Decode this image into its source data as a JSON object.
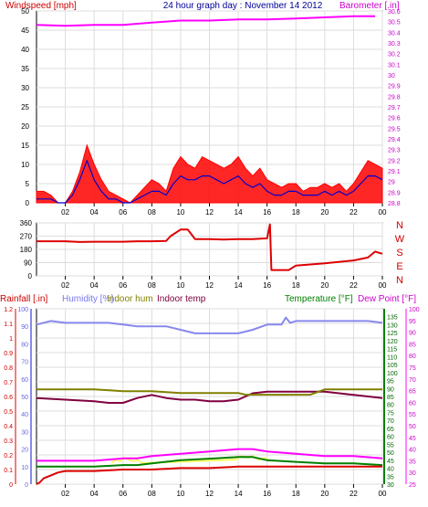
{
  "chart_data": [
    {
      "id": "wind_baro",
      "type": "line",
      "title": "24 hour graph day : November 14 2012",
      "left_axis_label": "Windspeed [mph]",
      "right_axis_label": "Barometer [.in]",
      "left_ylim": [
        0,
        50
      ],
      "left_ticks": [
        0,
        5,
        10,
        15,
        20,
        25,
        30,
        35,
        40,
        45,
        50
      ],
      "right_ylim": [
        28.8,
        30.6
      ],
      "right_ticks": [
        "28.8",
        "28.9",
        "29",
        "29.1",
        "29.2",
        "29.3",
        "29.4",
        "29.5",
        "29.6",
        "29.7",
        "29.8",
        "29.9",
        "30",
        "30.1",
        "30.2",
        "30.3",
        "30.4",
        "30.5",
        "30.6"
      ],
      "x_ticks": [
        "02",
        "04",
        "06",
        "08",
        "10",
        "12",
        "14",
        "16",
        "18",
        "20",
        "22",
        "00"
      ],
      "colors": {
        "wind_gust": "#ff0000",
        "wind_avg": "#0000cc",
        "barometer": "#ff00ff",
        "title": "#000099"
      },
      "series": [
        {
          "key": "barometer",
          "axis": "right",
          "x": [
            0,
            2,
            4,
            6,
            8,
            10,
            12,
            14,
            16,
            18,
            20,
            22,
            23.5
          ],
          "values": [
            30.47,
            30.46,
            30.47,
            30.47,
            30.49,
            30.51,
            30.51,
            30.52,
            30.52,
            30.53,
            30.54,
            30.55,
            30.55
          ]
        },
        {
          "key": "wind_gust",
          "axis": "left",
          "x": [
            0,
            0.5,
            1,
            1.5,
            2,
            2.5,
            3,
            3.5,
            4,
            4.5,
            5,
            5.5,
            6,
            6.5,
            7,
            7.5,
            8,
            8.5,
            9,
            9.5,
            10,
            10.5,
            11,
            11.5,
            12,
            12.5,
            13,
            13.5,
            14,
            14.5,
            15,
            15.5,
            16,
            16.5,
            17,
            17.5,
            18,
            18.5,
            19,
            19.5,
            20,
            20.5,
            21,
            21.5,
            22,
            22.5,
            23,
            23.5,
            24
          ],
          "values": [
            3,
            3,
            2,
            0,
            0,
            3,
            8,
            15,
            10,
            6,
            3,
            2,
            1,
            0,
            2,
            4,
            6,
            5,
            3,
            9,
            12,
            10,
            9,
            12,
            11,
            10,
            9,
            10,
            12,
            9,
            7,
            9,
            6,
            5,
            4,
            5,
            5,
            3,
            4,
            4,
            5,
            4,
            5,
            3,
            5,
            8,
            11,
            10,
            9
          ]
        },
        {
          "key": "wind_avg",
          "axis": "left",
          "x": [
            0,
            0.5,
            1,
            1.5,
            2,
            2.5,
            3,
            3.5,
            4,
            4.5,
            5,
            5.5,
            6,
            6.5,
            7,
            7.5,
            8,
            8.5,
            9,
            9.5,
            10,
            10.5,
            11,
            11.5,
            12,
            12.5,
            13,
            13.5,
            14,
            14.5,
            15,
            15.5,
            16,
            16.5,
            17,
            17.5,
            18,
            18.5,
            19,
            19.5,
            20,
            20.5,
            21,
            21.5,
            22,
            22.5,
            23,
            23.5,
            24
          ],
          "values": [
            1,
            1,
            1,
            0,
            0,
            2,
            6,
            11,
            6,
            3,
            1,
            1,
            0,
            0,
            1,
            2,
            3,
            3,
            2,
            5,
            7,
            6,
            6,
            7,
            7,
            6,
            5,
            6,
            7,
            5,
            4,
            5,
            3,
            2,
            2,
            3,
            3,
            2,
            2,
            2,
            3,
            2,
            3,
            2,
            3,
            5,
            7,
            7,
            6
          ]
        }
      ]
    },
    {
      "id": "wind_dir",
      "type": "line",
      "ylim": [
        0,
        360
      ],
      "y_ticks": [
        "0",
        "90",
        "180",
        "270",
        "360"
      ],
      "compass_labels": [
        "N",
        "W",
        "S",
        "E",
        "N"
      ],
      "x_ticks": [
        "02",
        "04",
        "06",
        "08",
        "10",
        "12",
        "14",
        "16",
        "18",
        "20",
        "22",
        "00"
      ],
      "colors": {
        "direction": "#dd0000"
      },
      "series": [
        {
          "key": "direction",
          "x": [
            0,
            2,
            3,
            4,
            6,
            7,
            8,
            9,
            9.3,
            10,
            10.5,
            11,
            12,
            13,
            14,
            15,
            16,
            16.2,
            16.3,
            17,
            17.5,
            18,
            20,
            22,
            23,
            23.5,
            24
          ],
          "values": [
            235,
            235,
            230,
            232,
            232,
            235,
            235,
            238,
            270,
            315,
            315,
            250,
            250,
            247,
            250,
            250,
            255,
            350,
            40,
            40,
            40,
            70,
            85,
            105,
            125,
            165,
            150
          ]
        }
      ]
    },
    {
      "id": "rain_hum_temp",
      "type": "line",
      "labels": {
        "rainfall": "Rainfall [.in]",
        "humidity": "Humidity [%]",
        "indoor_hum": "Indoor hum",
        "indoor_temp": "Indoor temp",
        "temperature": "Temperature [°F]",
        "dew_point": "Dew Point [°F]"
      },
      "rain_ylim": [
        0,
        1.2
      ],
      "rain_ticks": [
        "0",
        "0.1",
        "0.2",
        "0.3",
        "0.4",
        "0.5",
        "0.6",
        "0.7",
        "0.8",
        "0.9",
        "1",
        "1.1",
        "1.2"
      ],
      "humidity_ylim": [
        0,
        100
      ],
      "humidity_ticks": [
        "0",
        "10",
        "20",
        "30",
        "40",
        "50",
        "60",
        "70",
        "80",
        "90",
        "100"
      ],
      "temp_ylim": [
        30,
        140
      ],
      "temp_ticks": [
        "30",
        "35",
        "40",
        "45",
        "50",
        "55",
        "60",
        "65",
        "70",
        "75",
        "80",
        "85",
        "90",
        "95",
        "100",
        "105",
        "110",
        "115",
        "120",
        "125",
        "130",
        "135"
      ],
      "dew_ylim": [
        25,
        100
      ],
      "dew_ticks": [
        "25",
        "30",
        "35",
        "40",
        "45",
        "50",
        "55",
        "60",
        "65",
        "70",
        "75",
        "80",
        "85",
        "90",
        "95",
        "100"
      ],
      "x_ticks": [
        "02",
        "04",
        "06",
        "08",
        "10",
        "12",
        "14",
        "16",
        "18",
        "20",
        "22",
        "00"
      ],
      "colors": {
        "rainfall": "#dd0000",
        "humidity": "#8888ee",
        "indoor_hum": "#808000",
        "indoor_temp": "#800040",
        "temperature": "#008000",
        "dew_point": "#ff00ff",
        "yellow_trace": "#ffff66"
      },
      "series": [
        {
          "key": "humidity",
          "axis": "humidity",
          "x": [
            0,
            1,
            2,
            3,
            4,
            5,
            6,
            7,
            8,
            9,
            10,
            11,
            12,
            13,
            14,
            15,
            16,
            17,
            17.3,
            17.6,
            18,
            20,
            22,
            23,
            24
          ],
          "values": [
            91,
            93,
            92,
            92,
            92,
            92,
            91,
            90,
            90,
            90,
            88,
            86,
            86,
            86,
            86,
            88,
            91,
            91,
            95,
            92,
            93,
            93,
            93,
            93,
            92
          ]
        },
        {
          "key": "indoor_temp",
          "axis": "temp",
          "x": [
            0,
            2,
            4,
            5,
            6,
            7,
            8,
            9,
            10,
            11,
            12,
            13,
            14,
            15,
            16,
            18,
            20,
            21,
            22,
            23,
            24
          ],
          "values": [
            84,
            83,
            82,
            81,
            81,
            84,
            86,
            84,
            83,
            83,
            82,
            82,
            83,
            87,
            88,
            88,
            88,
            87,
            86,
            85,
            84
          ]
        },
        {
          "key": "indoor_hum",
          "axis": "humidity",
          "x": [
            0,
            2,
            4,
            6,
            7,
            8,
            10,
            12,
            14,
            14.5,
            16,
            18,
            19,
            20,
            22,
            24
          ],
          "values": [
            54,
            54,
            54,
            53,
            53,
            53,
            52,
            52,
            52,
            51,
            51,
            51,
            51,
            54,
            54,
            54
          ]
        },
        {
          "key": "temperature",
          "axis": "temp",
          "x": [
            0,
            2,
            4,
            6,
            7,
            8,
            10,
            12,
            14,
            15,
            16,
            18,
            20,
            22,
            24
          ],
          "values": [
            41,
            41,
            41,
            42,
            42,
            43,
            45,
            46,
            47,
            47,
            45,
            44,
            43,
            43,
            42
          ]
        },
        {
          "key": "dew_point",
          "axis": "dew",
          "x": [
            0,
            2,
            4,
            6,
            7,
            8,
            10,
            12,
            14,
            15,
            16,
            18,
            20,
            22,
            24
          ],
          "values": [
            35,
            35,
            35,
            36,
            36,
            37,
            38,
            39,
            40,
            40,
            39,
            38,
            37,
            37,
            36
          ]
        },
        {
          "key": "rainfall",
          "axis": "rain",
          "x": [
            0,
            0.2,
            0.5,
            1,
            1.5,
            2,
            4,
            6,
            8,
            10,
            12,
            14,
            16,
            18,
            20,
            22,
            24
          ],
          "values": [
            0,
            0.01,
            0.04,
            0.06,
            0.08,
            0.09,
            0.09,
            0.1,
            0.1,
            0.11,
            0.11,
            0.12,
            0.12,
            0.12,
            0.12,
            0.12,
            0.12
          ]
        },
        {
          "key": "yellow_trace",
          "axis": "humidity",
          "x": [
            5.2,
            5.5,
            5.8,
            6.1,
            6.4,
            6.7,
            7,
            7.3,
            13.8,
            14.2,
            14.6,
            15,
            15.4,
            15.8,
            16.2
          ],
          "values": [
            12,
            14,
            13,
            15,
            14,
            13,
            14,
            12,
            14,
            16,
            15,
            16,
            14,
            15,
            13
          ]
        }
      ]
    }
  ]
}
